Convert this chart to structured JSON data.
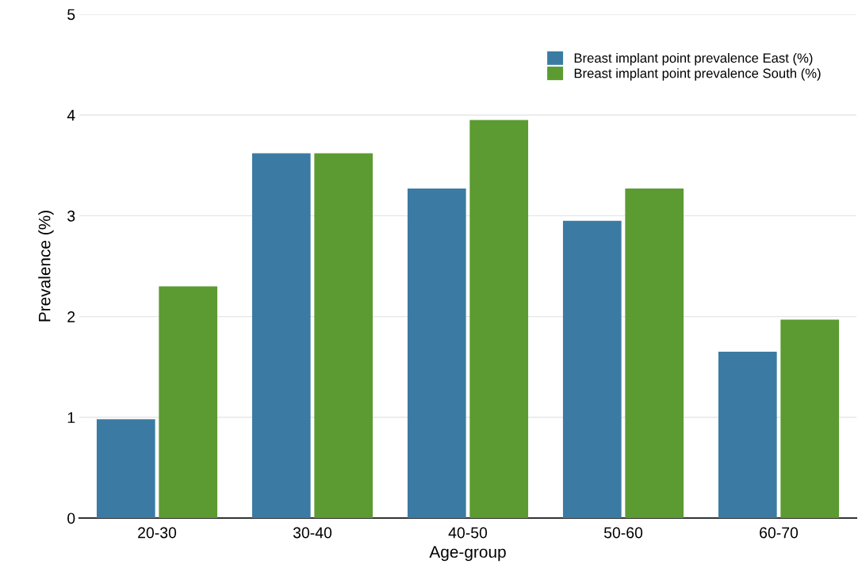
{
  "chart_data": {
    "type": "bar",
    "xlabel": "Age-group",
    "ylabel": "Prevalence (%)",
    "categories": [
      "20-30",
      "30-40",
      "40-50",
      "50-60",
      "60-70"
    ],
    "series": [
      {
        "name": "Breast implant point prevalence East (%)",
        "color": "#3b7ba3",
        "values": [
          0.98,
          3.62,
          3.27,
          2.95,
          1.65
        ]
      },
      {
        "name": "Breast implant point prevalence South (%)",
        "color": "#5b9b31",
        "values": [
          2.3,
          3.62,
          3.95,
          3.27,
          1.97
        ]
      }
    ],
    "ylim": [
      0,
      5
    ],
    "yticks": [
      0,
      1,
      2,
      3,
      4,
      5
    ],
    "grid": "y",
    "legend": "top right"
  }
}
